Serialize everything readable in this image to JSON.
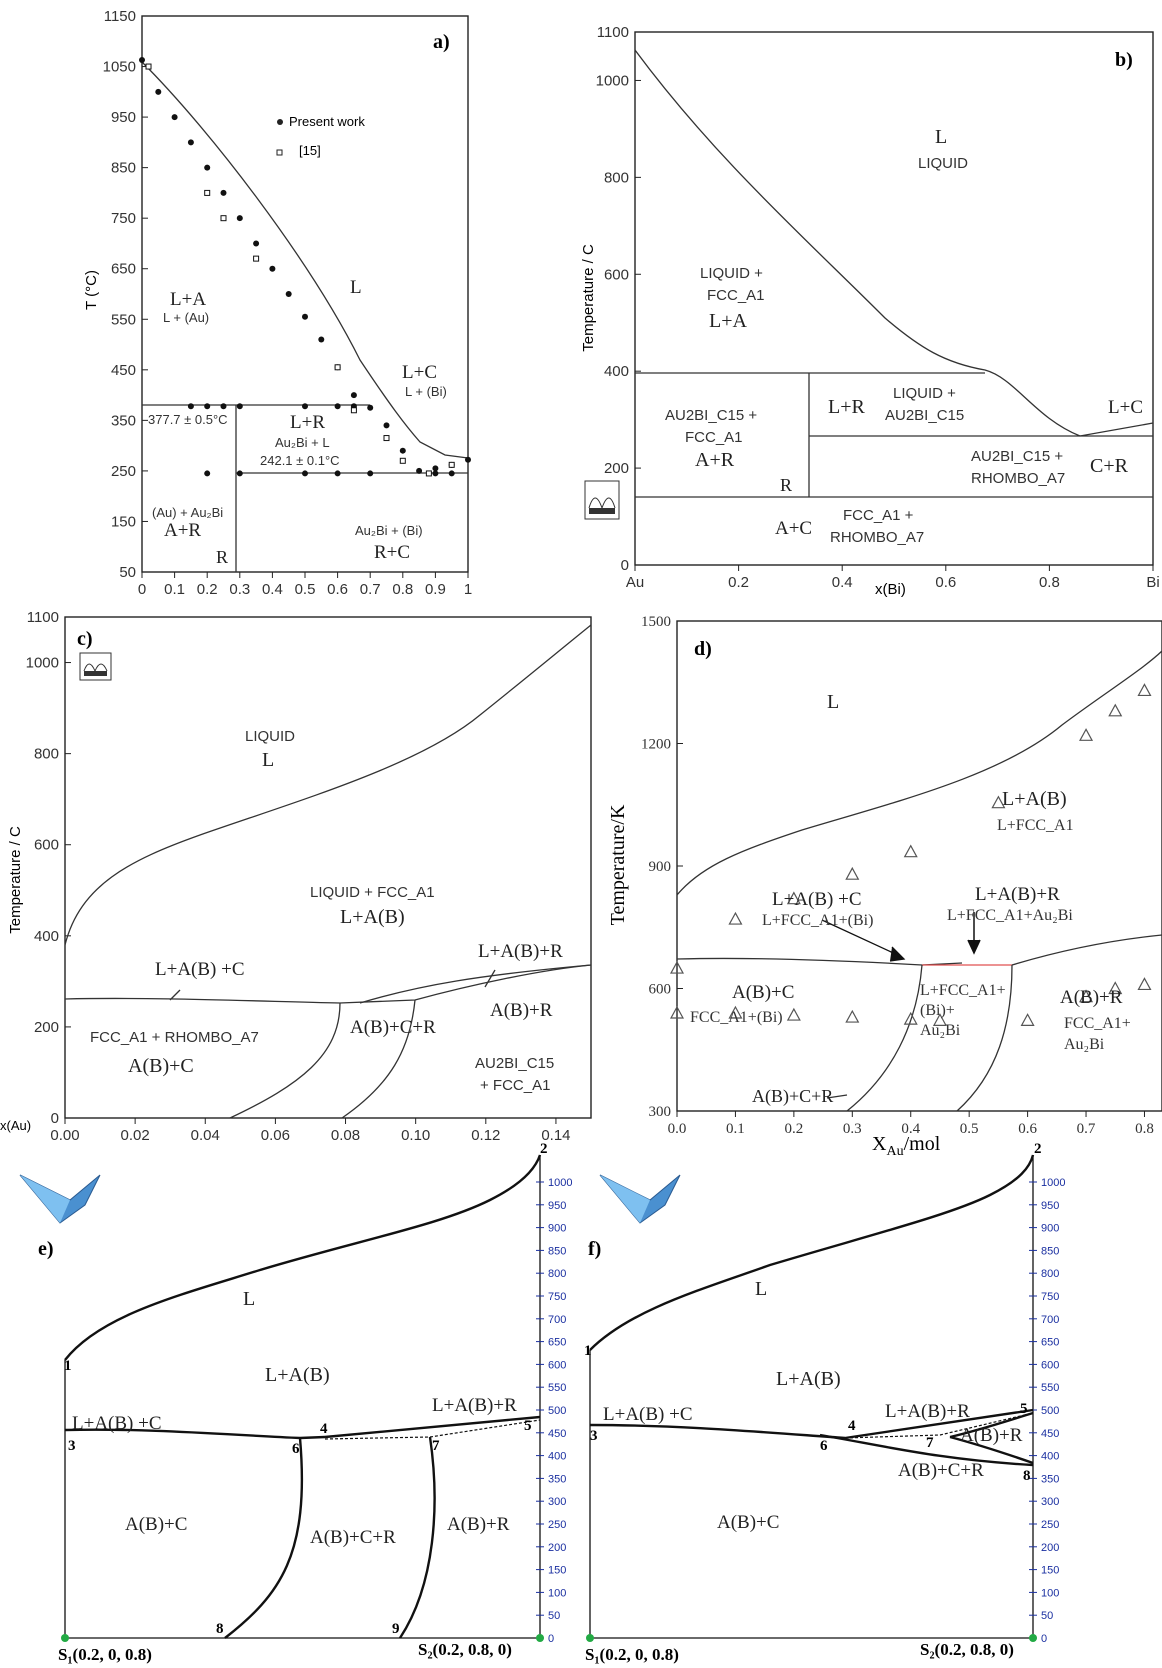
{
  "colors": {
    "ink": "#222222",
    "red_line": "#e05050",
    "scale_blue": "#1a2fa0",
    "marker_green": "#22aa44"
  },
  "panels": {
    "a": {
      "letter": "a)",
      "ylabel": "T (°C)",
      "yticks": [
        "50",
        "150",
        "250",
        "350",
        "450",
        "550",
        "650",
        "750",
        "850",
        "950",
        "1050",
        "1150"
      ],
      "xticks": [
        "0",
        "0.1",
        "0.2",
        "0.3",
        "0.4",
        "0.5",
        "0.6",
        "0.7",
        "0.8",
        "0.9",
        "1"
      ],
      "legend": [
        {
          "symbol": "filled-circle",
          "label": "Present work"
        },
        {
          "symbol": "open-square",
          "label": "[15]"
        }
      ],
      "regions": {
        "L": "L",
        "LA": "L+A",
        "LA_sub": "L + (Au)",
        "LC": "L+C",
        "LC_sub": "L + (Bi)",
        "LR": "L+R",
        "LR_sub": "Au₂Bi + L",
        "iso1": "377.7 ± 0.5°C",
        "iso2": "242.1 ± 0.1°C",
        "AR_sub": "(Au) + Au₂Bi",
        "AR": "A+R",
        "R": "R",
        "RC_sub": "Au₂Bi + (Bi)",
        "RC": "R+C"
      }
    },
    "b": {
      "letter": "b)",
      "ylabel": "Temperature / C",
      "xlabel": "x(Bi)",
      "yticks": [
        "0",
        "200",
        "400",
        "600",
        "800",
        "1000",
        "1100"
      ],
      "xticks": [
        "Au",
        "0.2",
        "0.4",
        "0.6",
        "0.8",
        "Bi"
      ],
      "regions": {
        "L": "L",
        "L_sub": "LIQUID",
        "LA_sub1": "LIQUID +",
        "LA_sub2": "FCC_A1",
        "LA": "L+A",
        "LR": "L+R",
        "LR_sub1": "LIQUID +",
        "LR_sub2": "AU2BI_C15",
        "LC": "L+C",
        "AR_sub1": "AU2BI_C15 +",
        "AR_sub2": "FCC_A1",
        "AR": "A+R",
        "R": "R",
        "CR_sub1": "AU2BI_C15 +",
        "CR_sub2": "RHOMBO_A7",
        "CR": "C+R",
        "AC": "A+C",
        "AC_sub1": "FCC_A1 +",
        "AC_sub2": "RHOMBO_A7"
      }
    },
    "c": {
      "letter": "c)",
      "ylabel": "Temperature / C",
      "xlabel": "x(Au)",
      "yticks": [
        "0",
        "200",
        "400",
        "600",
        "800",
        "1000",
        "1100"
      ],
      "xticks": [
        "0.00",
        "0.02",
        "0.04",
        "0.06",
        "0.08",
        "0.10",
        "0.12",
        "0.14"
      ],
      "regions": {
        "L_sub": "LIQUID",
        "L": "L",
        "LAB_sub": "LIQUID + FCC_A1",
        "LAB": "L+A(B)",
        "LABC": "L+A(B) +C",
        "LABR": "L+A(B)+R",
        "ABC_sub": "FCC_A1 + RHOMBO_A7",
        "ABC": "A(B)+C",
        "ABCR": "A(B)+C+R",
        "ABR": "A(B)+R",
        "ABR_sub1": "AU2BI_C15",
        "ABR_sub2": "+ FCC_A1"
      }
    },
    "d": {
      "letter": "d)",
      "ylabel": "Temperature/K",
      "xlabel": "X",
      "xlabel_sub": "Au",
      "xlabel_tail": "/mol",
      "yticks": [
        "300",
        "600",
        "900",
        "1200",
        "1500"
      ],
      "xticks": [
        "0.0",
        "0.1",
        "0.2",
        "0.3",
        "0.4",
        "0.5",
        "0.6",
        "0.7",
        "0.8"
      ],
      "regions": {
        "L": "L",
        "LAB": "L+A(B)",
        "LAB_sub": "L+FCC_A1",
        "LABC": "L+A(B) +C",
        "LABC_sub": "L+FCC_A1+(Bi)",
        "LABR": "L+A(B)+R",
        "LABR_sub": "L+FCC_A1+Au₂Bi",
        "ABC": "A(B)+C",
        "ABC_sub": "FCC_A1+(Bi)",
        "mid1": "L+FCC_A1+",
        "mid2": "(Bi)+",
        "mid3": "Au₂Bi",
        "ABR": "A(B)+R",
        "ABR_sub1": "FCC_A1+",
        "ABR_sub2": "Au₂Bi",
        "ABCR": "A(B)+C+R"
      }
    },
    "e": {
      "letter": "e)",
      "scale": [
        "0",
        "50",
        "100",
        "150",
        "200",
        "250",
        "300",
        "350",
        "400",
        "450",
        "500",
        "550",
        "600",
        "650",
        "700",
        "750",
        "800",
        "850",
        "900",
        "950",
        "1000"
      ],
      "points": [
        "1",
        "2",
        "3",
        "4",
        "5",
        "6",
        "7",
        "8",
        "9"
      ],
      "endpoints": {
        "s1": "S₁(0.2, 0, 0.8)",
        "s2": "S₂(0.2, 0.8, 0)"
      },
      "regions": {
        "L": "L",
        "LAB": "L+A(B)",
        "LABC": "L+A(B) +C",
        "LABR": "L+A(B)+R",
        "ABC": "A(B)+C",
        "ABCR": "A(B)+C+R",
        "ABR": "A(B)+R"
      }
    },
    "f": {
      "letter": "f)",
      "scale": [
        "0",
        "50",
        "100",
        "150",
        "200",
        "250",
        "300",
        "350",
        "400",
        "450",
        "500",
        "550",
        "600",
        "650",
        "700",
        "750",
        "800",
        "850",
        "900",
        "950",
        "1000"
      ],
      "points": [
        "1",
        "2",
        "3",
        "4",
        "5",
        "6",
        "7",
        "8"
      ],
      "endpoints": {
        "s1": "S₁(0.2, 0, 0.8)",
        "s2": "S₂(0.2, 0.8, 0)"
      },
      "regions": {
        "L": "L",
        "LAB": "L+A(B)",
        "LABC": "L+A(B) +C",
        "LABR": "L+A(B)+R",
        "ABR": "A(B)+R",
        "ABC": "A(B)+C",
        "ABCR": "A(B)+C+R"
      }
    }
  },
  "chart_data": [
    {
      "type": "line",
      "panel": "a",
      "xlabel": "",
      "ylabel": "T (°C)",
      "xlim": [
        0,
        1
      ],
      "ylim": [
        50,
        1150
      ],
      "series": [
        {
          "name": "Present work",
          "x": [
            0,
            0.05,
            0.1,
            0.15,
            0.2,
            0.25,
            0.3,
            0.35,
            0.4,
            0.45,
            0.5,
            0.55,
            0.6,
            0.65,
            0.7,
            0.75,
            0.8,
            0.85,
            0.9,
            0.95,
            1.0,
            0.15,
            0.2,
            0.25,
            0.3,
            0.5,
            0.6,
            0.65,
            0.2,
            0.3,
            0.5,
            0.6,
            0.7,
            0.9,
            0.95
          ],
          "y": [
            1063,
            1000,
            950,
            900,
            850,
            800,
            750,
            700,
            650,
            600,
            555,
            510,
            455,
            400,
            375,
            340,
            290,
            250,
            255,
            262,
            272,
            378,
            378,
            378,
            378,
            378,
            378,
            378,
            245,
            245,
            245,
            245,
            245,
            245,
            245
          ]
        },
        {
          "name": "[15]",
          "x": [
            0.02,
            0.2,
            0.25,
            0.35,
            0.6,
            0.65,
            0.75,
            0.8,
            0.88,
            0.95
          ],
          "y": [
            1050,
            800,
            750,
            670,
            455,
            370,
            315,
            270,
            245,
            262
          ]
        }
      ],
      "isotherms": [
        377.7,
        242.1
      ]
    },
    {
      "type": "line",
      "panel": "b",
      "xlabel": "x(Bi)",
      "ylabel": "Temperature / C",
      "xlim": [
        0,
        1
      ],
      "ylim": [
        0,
        1100
      ],
      "series": [
        {
          "x": [
            0,
            0.1,
            0.2,
            0.3,
            0.4,
            0.5,
            0.6,
            0.67,
            0.75,
            0.8,
            0.86
          ],
          "y": [
            1064,
            980,
            880,
            780,
            680,
            590,
            480,
            380,
            320,
            280,
            242
          ]
        },
        {
          "x": [
            0,
            0.333,
            0.333,
            0.333,
            1.0,
            0,
            1.0,
            0.86,
            1.0
          ],
          "y": [
            378,
            378,
            114,
            242,
            242,
            114,
            114,
            242,
            272
          ]
        }
      ]
    },
    {
      "type": "line",
      "panel": "c",
      "xlabel": "x(Au)",
      "ylabel": "Temperature / C",
      "xlim": [
        0,
        0.15
      ],
      "ylim": [
        0,
        1100
      ],
      "series": [
        {
          "x": [
            0,
            0.005,
            0.01,
            0.02,
            0.04,
            0.06,
            0.08,
            0.1,
            0.12,
            0.14,
            0.15
          ],
          "y": [
            375,
            455,
            490,
            530,
            580,
            640,
            700,
            780,
            880,
            990,
            1060
          ]
        },
        {
          "x": [
            0,
            0.02,
            0.04,
            0.06,
            0.078,
            0.1,
            0.115,
            0.13,
            0.15
          ],
          "y": [
            262,
            262,
            258,
            255,
            252,
            270,
            290,
            310,
            325
          ]
        }
      ]
    },
    {
      "type": "line",
      "panel": "d",
      "xlabel": "X_Au/mol",
      "ylabel": "Temperature/K",
      "xlim": [
        0,
        0.8
      ],
      "ylim": [
        300,
        1500
      ],
      "series": [
        {
          "x": [
            0,
            0.1,
            0.2,
            0.3,
            0.4,
            0.55,
            0.7,
            0.75,
            0.8
          ],
          "y": [
            650,
            770,
            820,
            880,
            935,
            1055,
            1220,
            1280,
            1330
          ]
        },
        {
          "x": [
            0,
            0.1,
            0.2,
            0.3,
            0.4,
            0.45,
            0.6,
            0.7,
            0.75,
            0.8
          ],
          "y": [
            540,
            540,
            535,
            530,
            525,
            522,
            522,
            580,
            600,
            610
          ]
        }
      ]
    }
  ]
}
